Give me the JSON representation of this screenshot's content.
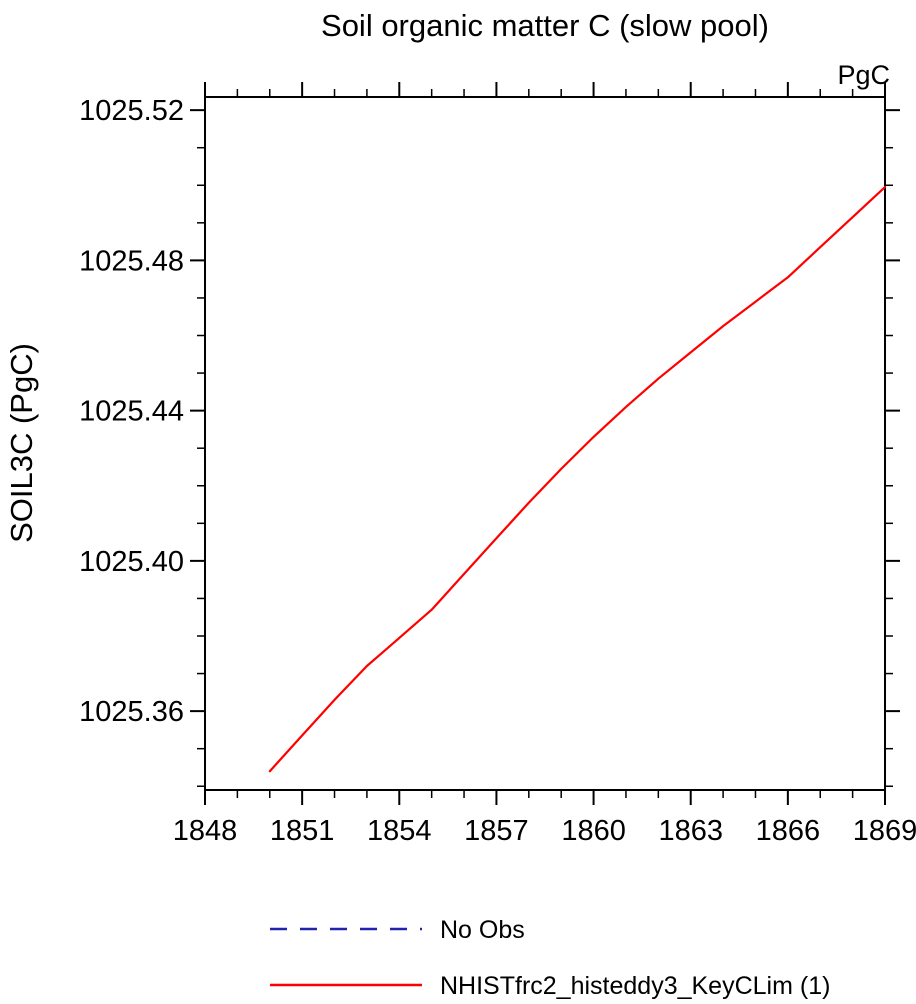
{
  "title": "Soil organic matter C (slow pool)",
  "unit_label": "PgC",
  "yaxis_title": "SOIL3C  (PgC)",
  "legend": [
    {
      "label": "No Obs",
      "color": "#2222aa",
      "style": "dashed"
    },
    {
      "label": "NHISTfrc2_histeddy3_KeyCLim (1)",
      "color": "#ff0000",
      "style": "solid"
    }
  ],
  "chart_data": {
    "type": "line",
    "title": "Soil organic matter C (slow pool)",
    "xlabel": "",
    "ylabel": "SOIL3C (PgC)",
    "unit": "PgC",
    "xlim": [
      1848,
      1869
    ],
    "ylim": [
      1025.339,
      1025.5235
    ],
    "xticks": [
      1848,
      1851,
      1854,
      1857,
      1860,
      1863,
      1866,
      1869
    ],
    "xtick_labels": [
      "1848",
      "1851",
      "1854",
      "1857",
      "1860",
      "1863",
      "1866",
      "1869"
    ],
    "xminor_step": 1,
    "yticks": [
      1025.36,
      1025.4,
      1025.44,
      1025.48,
      1025.52
    ],
    "ytick_labels": [
      "1025.36",
      "1025.40",
      "1025.44",
      "1025.48",
      "1025.52"
    ],
    "yminor_step": 0.01,
    "grid": false,
    "legend_position": "below",
    "series": [
      {
        "name": "NHISTfrc2_histeddy3_KeyCLim (1)",
        "color": "#ff0000",
        "style": "solid",
        "x": [
          1850,
          1851,
          1852,
          1853,
          1854,
          1855,
          1856,
          1857,
          1858,
          1859,
          1860,
          1861,
          1862,
          1863,
          1864,
          1865,
          1866,
          1867,
          1868,
          1869
        ],
        "y": [
          1025.344,
          1025.3535,
          1025.363,
          1025.372,
          1025.3795,
          1025.387,
          1025.3965,
          1025.406,
          1025.4155,
          1025.4245,
          1025.433,
          1025.441,
          1025.4485,
          1025.4555,
          1025.4625,
          1025.469,
          1025.4755,
          1025.4835,
          1025.4915,
          1025.4995
        ]
      }
    ]
  }
}
